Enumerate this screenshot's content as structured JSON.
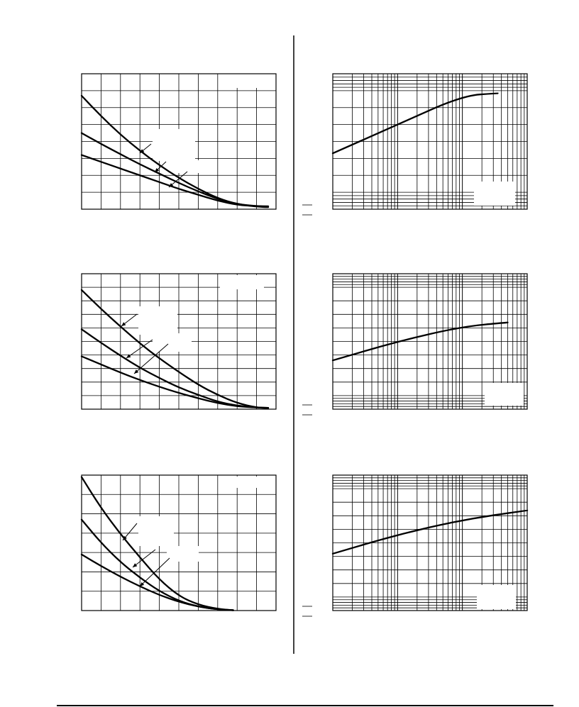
{
  "chart_data": [
    {
      "type": "line",
      "scale": "linear",
      "xlim": [
        0,
        10
      ],
      "ylim": [
        0,
        8
      ],
      "x_divisions": 10,
      "y_divisions": 8,
      "series": [
        {
          "x": [
            0,
            1,
            2,
            3,
            4,
            5,
            6,
            7,
            8,
            9,
            9.6
          ],
          "y": [
            6.7,
            5.5,
            4.4,
            3.45,
            2.6,
            1.85,
            1.2,
            0.65,
            0.3,
            0.15,
            0.12
          ]
        },
        {
          "x": [
            0,
            1,
            2,
            3,
            4,
            5,
            6,
            7,
            8,
            9,
            9.6
          ],
          "y": [
            4.5,
            3.85,
            3.25,
            2.65,
            2.1,
            1.55,
            1.05,
            0.6,
            0.3,
            0.18,
            0.15
          ]
        },
        {
          "x": [
            0,
            1,
            2,
            3,
            4,
            5,
            6,
            7,
            8,
            9,
            9.6
          ],
          "y": [
            3.2,
            2.8,
            2.4,
            2.0,
            1.6,
            1.2,
            0.85,
            0.5,
            0.25,
            0.18,
            0.17
          ]
        }
      ]
    },
    {
      "type": "line",
      "scale": "log-x",
      "xlim_decades": [
        0,
        3
      ],
      "ylim": [
        0,
        8
      ],
      "x_decades": 3,
      "y_divisions": 8,
      "series": [
        {
          "x": [
            1,
            10,
            100,
            350
          ],
          "y": [
            3.3,
            5.0,
            6.7,
            6.85
          ]
        }
      ]
    },
    {
      "type": "line",
      "scale": "linear",
      "xlim": [
        0,
        10
      ],
      "ylim": [
        0,
        10
      ],
      "x_divisions": 10,
      "y_divisions": 10,
      "series": [
        {
          "x": [
            0,
            1,
            2,
            3,
            4,
            5,
            6,
            7,
            8,
            9,
            9.6
          ],
          "y": [
            8.8,
            7.4,
            6.1,
            4.85,
            3.75,
            2.75,
            1.8,
            1.05,
            0.45,
            0.12,
            0.08
          ]
        },
        {
          "x": [
            0,
            1,
            2,
            3,
            4,
            5,
            6,
            7,
            8,
            9,
            9.6
          ],
          "y": [
            5.9,
            4.9,
            3.95,
            3.05,
            2.3,
            1.6,
            1.05,
            0.55,
            0.25,
            0.12,
            0.1
          ]
        },
        {
          "x": [
            0,
            1,
            2,
            3,
            4,
            5,
            6,
            7,
            8,
            9,
            9.6
          ],
          "y": [
            3.9,
            3.3,
            2.7,
            2.15,
            1.65,
            1.2,
            0.8,
            0.45,
            0.2,
            0.12,
            0.1
          ]
        }
      ]
    },
    {
      "type": "line",
      "scale": "log-x",
      "xlim_decades": [
        0,
        3
      ],
      "ylim": [
        0,
        10
      ],
      "x_decades": 3,
      "y_divisions": 10,
      "series": [
        {
          "x": [
            1,
            10,
            100,
            500
          ],
          "y": [
            3.6,
            5.0,
            6.1,
            6.4
          ]
        }
      ]
    },
    {
      "type": "line",
      "scale": "linear",
      "xlim": [
        0,
        10
      ],
      "ylim": [
        0,
        7
      ],
      "x_divisions": 10,
      "y_divisions": 7,
      "series": [
        {
          "x": [
            0,
            1,
            2,
            3,
            4,
            5,
            6,
            7,
            7.8
          ],
          "y": [
            6.9,
            5.3,
            3.95,
            2.75,
            1.6,
            0.75,
            0.3,
            0.08,
            0.02
          ]
        },
        {
          "x": [
            0,
            1,
            2,
            3,
            4,
            5,
            6,
            7,
            7.8
          ],
          "y": [
            4.7,
            3.5,
            2.5,
            1.7,
            1.0,
            0.5,
            0.2,
            0.06,
            0.02
          ]
        },
        {
          "x": [
            0,
            1,
            2,
            3,
            4,
            5,
            6,
            7,
            7.8
          ],
          "y": [
            2.9,
            2.3,
            1.75,
            1.25,
            0.8,
            0.45,
            0.2,
            0.06,
            0.02
          ]
        }
      ]
    },
    {
      "type": "line",
      "scale": "log-x",
      "xlim_decades": [
        0,
        3
      ],
      "ylim": [
        0,
        10
      ],
      "x_decades": 3,
      "y_divisions": 10,
      "series": [
        {
          "x": [
            1,
            10,
            100,
            1000
          ],
          "y": [
            4.2,
            5.6,
            6.7,
            7.4
          ]
        }
      ]
    }
  ]
}
